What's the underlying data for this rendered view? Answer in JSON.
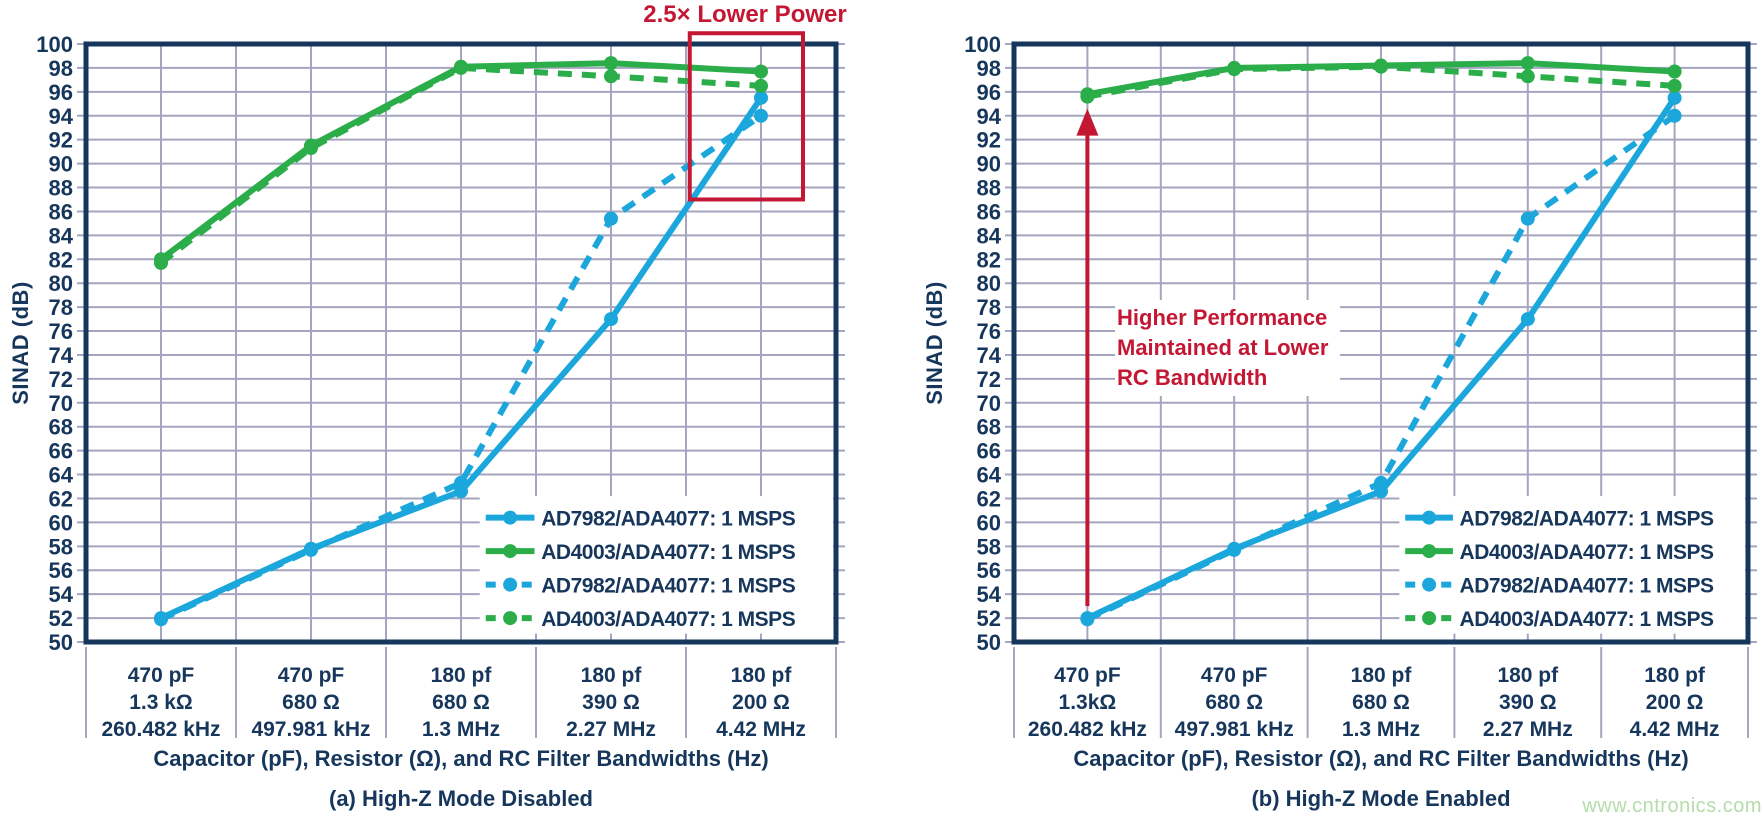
{
  "colors": {
    "navy": "#16365C",
    "grid": "#A5A5BF",
    "cyan": "#1BA7DC",
    "green": "#2BAD4A",
    "red": "#C41734",
    "watermark_green": "#B5DCAB",
    "legend_bg": "#FFFFFF",
    "background": "#FFFFFF"
  },
  "watermark": "www.cntronics.com",
  "chart_data": [
    {
      "type": "line",
      "caption": "(a) High-Z Mode Disabled",
      "xlabel": "Capacitor (pF), Resistor (Ω), and RC Filter Bandwidths (Hz)",
      "ylabel": "SINAD (dB)",
      "ylim": [
        50,
        100
      ],
      "ytick_step": 2,
      "grid": true,
      "legend_position": "lower right",
      "categories": [
        [
          "470 pF",
          "1.3 kΩ",
          "260.482 kHz"
        ],
        [
          "470 pF",
          "680 Ω",
          "497.981 kHz"
        ],
        [
          "180 pf",
          "680 Ω",
          "1.3 MHz"
        ],
        [
          "180 pf",
          "390 Ω",
          "2.27 MHz"
        ],
        [
          "180 pf",
          "200 Ω",
          "4.42 MHz"
        ]
      ],
      "series": [
        {
          "name": "AD7982/ADA4077: 1 MSPS",
          "color": "cyan",
          "style": "solid",
          "values": [
            52.0,
            57.8,
            62.6,
            77.0,
            95.5
          ]
        },
        {
          "name": "AD4003/ADA4077: 1 MSPS",
          "color": "green",
          "style": "solid",
          "values": [
            82.0,
            91.5,
            98.1,
            98.4,
            97.7
          ]
        },
        {
          "name": "AD7982/ADA4077: 1 MSPS",
          "color": "cyan",
          "style": "dashed",
          "values": [
            51.9,
            57.7,
            63.3,
            85.4,
            94.0
          ]
        },
        {
          "name": "AD4003/ADA4077: 1 MSPS",
          "color": "green",
          "style": "dashed",
          "values": [
            81.7,
            91.3,
            98.0,
            97.3,
            96.5
          ]
        }
      ],
      "annotations": {
        "label": "2.5× Lower Power",
        "rect": {
          "x0_frac": 0.805,
          "x1_frac": 0.956,
          "top_db": 100.9,
          "bottom_db": 87.0
        }
      }
    },
    {
      "type": "line",
      "caption": "(b) High-Z Mode Enabled",
      "xlabel": "Capacitor (pF), Resistor (Ω), and RC Filter Bandwidths (Hz)",
      "ylabel": "SINAD (dB)",
      "ylim": [
        50,
        100
      ],
      "ytick_step": 2,
      "grid": true,
      "legend_position": "lower right",
      "categories": [
        [
          "470 pF",
          "1.3kΩ",
          "260.482 kHz"
        ],
        [
          "470 pF",
          "680 Ω",
          "497.981 kHz"
        ],
        [
          "180 pf",
          "680 Ω",
          "1.3 MHz"
        ],
        [
          "180 pf",
          "390 Ω",
          "2.27 MHz"
        ],
        [
          "180 pf",
          "200 Ω",
          "4.42 MHz"
        ]
      ],
      "series": [
        {
          "name": "AD7982/ADA4077: 1 MSPS",
          "color": "cyan",
          "style": "solid",
          "values": [
            52.0,
            57.8,
            62.6,
            77.0,
            95.5
          ]
        },
        {
          "name": "AD4003/ADA4077: 1 MSPS",
          "color": "green",
          "style": "solid",
          "values": [
            95.8,
            98.0,
            98.2,
            98.4,
            97.7
          ]
        },
        {
          "name": "AD7982/ADA4077: 1 MSPS",
          "color": "cyan",
          "style": "dashed",
          "values": [
            51.9,
            57.7,
            63.3,
            85.4,
            94.0
          ]
        },
        {
          "name": "AD4003/ADA4077: 1 MSPS",
          "color": "green",
          "style": "dashed",
          "values": [
            95.6,
            97.9,
            98.1,
            97.3,
            96.5
          ]
        }
      ],
      "annotations": {
        "arrow": {
          "x_frac": 0.1,
          "from_db": 53.0,
          "to_db": 94.6
        },
        "note": {
          "lines": [
            "Higher Performance",
            "Maintained at Lower",
            "RC Bandwidth"
          ]
        }
      }
    }
  ]
}
